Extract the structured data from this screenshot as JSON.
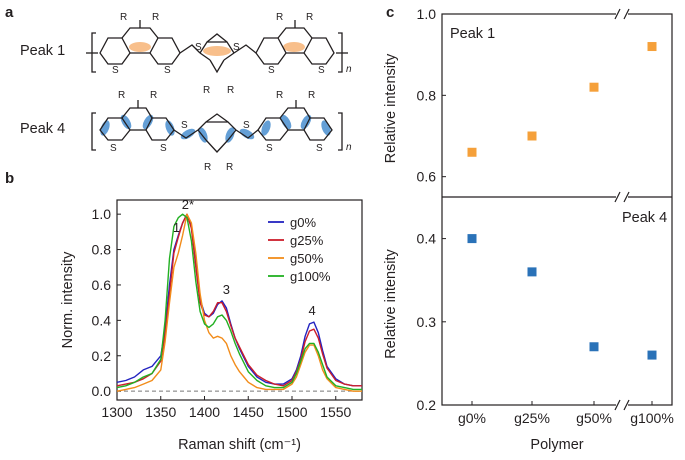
{
  "panels": {
    "a": {
      "letter": "a",
      "peak1_label": "Peak 1",
      "peak4_label": "Peak 4",
      "subscript_n": "n",
      "r_label": "R",
      "s_label": "S"
    },
    "b": {
      "letter": "b"
    },
    "c": {
      "letter": "c"
    }
  },
  "colors": {
    "g0": "#2323c0",
    "g25": "#cc1e2b",
    "g50": "#f28c1a",
    "g100": "#22b022",
    "peak1": "#f5a03a",
    "peak4": "#2a72b8",
    "highlight_orange": "#f7b477",
    "highlight_blue": "#4a8fd0"
  },
  "chart_data": [
    {
      "type": "line",
      "title": "",
      "xlabel": "Raman shift (cm⁻¹)",
      "ylabel": "Norm. intensity",
      "xlim": [
        1300,
        1580
      ],
      "ylim": [
        -0.05,
        1.08
      ],
      "xticks": [
        1300,
        1350,
        1400,
        1450,
        1500,
        1550
      ],
      "yticks": [
        0.0,
        0.2,
        0.4,
        0.6,
        0.8,
        1.0
      ],
      "annotations": [
        {
          "text": "1",
          "x": 1368,
          "y": 0.9
        },
        {
          "text": "2*",
          "x": 1381,
          "y": 1.03
        },
        {
          "text": "3",
          "x": 1425,
          "y": 0.55
        },
        {
          "text": "4",
          "x": 1523,
          "y": 0.43
        }
      ],
      "baseline": 0.0,
      "legend": "top-right",
      "x": [
        1300,
        1310,
        1320,
        1330,
        1340,
        1350,
        1355,
        1360,
        1365,
        1370,
        1375,
        1380,
        1385,
        1390,
        1395,
        1400,
        1405,
        1410,
        1415,
        1420,
        1425,
        1430,
        1435,
        1440,
        1445,
        1450,
        1460,
        1470,
        1480,
        1490,
        1500,
        1505,
        1510,
        1515,
        1520,
        1525,
        1530,
        1535,
        1540,
        1550,
        1560,
        1570,
        1580
      ],
      "series": [
        {
          "name": "g0%",
          "key": "g0",
          "values": [
            0.05,
            0.06,
            0.08,
            0.12,
            0.14,
            0.2,
            0.35,
            0.6,
            0.8,
            0.88,
            0.95,
            1.0,
            0.93,
            0.72,
            0.52,
            0.44,
            0.42,
            0.44,
            0.49,
            0.51,
            0.47,
            0.38,
            0.3,
            0.24,
            0.19,
            0.14,
            0.08,
            0.05,
            0.04,
            0.04,
            0.07,
            0.12,
            0.2,
            0.31,
            0.38,
            0.39,
            0.33,
            0.23,
            0.14,
            0.07,
            0.04,
            0.03,
            0.03
          ]
        },
        {
          "name": "g25%",
          "key": "g25",
          "values": [
            0.03,
            0.04,
            0.05,
            0.07,
            0.1,
            0.17,
            0.32,
            0.55,
            0.78,
            0.87,
            0.95,
            1.0,
            0.92,
            0.7,
            0.5,
            0.43,
            0.42,
            0.45,
            0.5,
            0.5,
            0.45,
            0.37,
            0.3,
            0.25,
            0.2,
            0.15,
            0.09,
            0.06,
            0.04,
            0.03,
            0.06,
            0.11,
            0.18,
            0.28,
            0.34,
            0.35,
            0.3,
            0.21,
            0.13,
            0.06,
            0.04,
            0.03,
            0.03
          ]
        },
        {
          "name": "g50%",
          "key": "g50",
          "values": [
            0.0,
            0.01,
            0.02,
            0.04,
            0.06,
            0.12,
            0.28,
            0.5,
            0.7,
            0.78,
            0.88,
            1.0,
            0.95,
            0.78,
            0.55,
            0.4,
            0.33,
            0.3,
            0.31,
            0.3,
            0.27,
            0.2,
            0.15,
            0.11,
            0.08,
            0.05,
            0.02,
            0.01,
            0.01,
            0.01,
            0.04,
            0.08,
            0.15,
            0.22,
            0.26,
            0.26,
            0.2,
            0.12,
            0.07,
            0.02,
            0.01,
            0.0,
            0.0
          ]
        },
        {
          "name": "g100%",
          "key": "g100",
          "values": [
            0.02,
            0.03,
            0.05,
            0.08,
            0.1,
            0.18,
            0.4,
            0.75,
            0.93,
            0.98,
            1.0,
            0.98,
            0.85,
            0.62,
            0.45,
            0.38,
            0.36,
            0.38,
            0.42,
            0.43,
            0.4,
            0.34,
            0.27,
            0.21,
            0.16,
            0.11,
            0.06,
            0.03,
            0.02,
            0.02,
            0.05,
            0.1,
            0.17,
            0.24,
            0.27,
            0.27,
            0.22,
            0.15,
            0.08,
            0.03,
            0.02,
            0.01,
            0.01
          ]
        }
      ]
    },
    {
      "type": "scatter",
      "title": "",
      "panel_label": "Peak 1",
      "ylabel": "Relative intensity",
      "ylim": [
        0.55,
        1.0
      ],
      "yticks": [
        0.6,
        0.8,
        1.0
      ],
      "categories": [
        "g0%",
        "g25%",
        "g50%",
        "g100%"
      ],
      "series": [
        {
          "name": "Peak 1",
          "values": [
            0.66,
            0.7,
            0.82,
            0.92
          ]
        }
      ],
      "axis_break": true
    },
    {
      "type": "scatter",
      "title": "",
      "panel_label": "Peak 4",
      "xlabel": "Polymer",
      "ylabel": "Relative intensity",
      "ylim": [
        0.2,
        0.45
      ],
      "yticks": [
        0.2,
        0.3,
        0.4
      ],
      "categories": [
        "g0%",
        "g25%",
        "g50%",
        "g100%"
      ],
      "series": [
        {
          "name": "Peak 4",
          "values": [
            0.4,
            0.36,
            0.27,
            0.26
          ]
        }
      ],
      "axis_break": true
    }
  ]
}
